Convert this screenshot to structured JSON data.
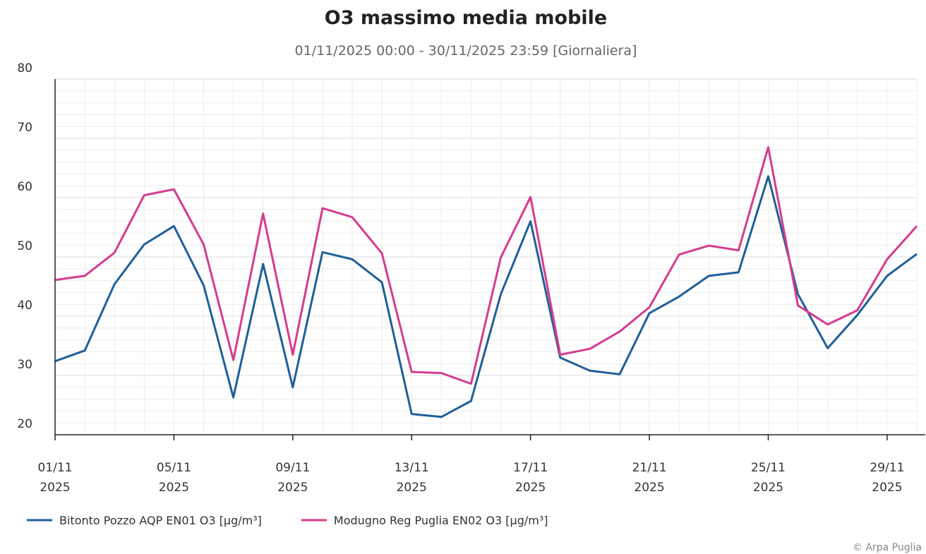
{
  "chart_data": {
    "type": "line",
    "title": "O3 massimo media mobile",
    "subtitle": "01/11/2025 00:00 - 30/11/2025 23:59 [Giornaliera]",
    "credit": "© Arpa Puglia",
    "x": [
      "01/11/2025",
      "02/11/2025",
      "03/11/2025",
      "04/11/2025",
      "05/11/2025",
      "06/11/2025",
      "07/11/2025",
      "08/11/2025",
      "09/11/2025",
      "10/11/2025",
      "11/11/2025",
      "12/11/2025",
      "13/11/2025",
      "14/11/2025",
      "15/11/2025",
      "16/11/2025",
      "17/11/2025",
      "18/11/2025",
      "19/11/2025",
      "20/11/2025",
      "21/11/2025",
      "22/11/2025",
      "23/11/2025",
      "24/11/2025",
      "25/11/2025",
      "26/11/2025",
      "27/11/2025",
      "28/11/2025",
      "29/11/2025",
      "30/11/2025"
    ],
    "xticks": [
      {
        "value": "01/11/2025",
        "label": [
          "01/11",
          "2025"
        ]
      },
      {
        "value": "05/11/2025",
        "label": [
          "05/11",
          "2025"
        ]
      },
      {
        "value": "09/11/2025",
        "label": [
          "09/11",
          "2025"
        ]
      },
      {
        "value": "13/11/2025",
        "label": [
          "13/11",
          "2025"
        ]
      },
      {
        "value": "17/11/2025",
        "label": [
          "17/11",
          "2025"
        ]
      },
      {
        "value": "21/11/2025",
        "label": [
          "21/11",
          "2025"
        ]
      },
      {
        "value": "25/11/2025",
        "label": [
          "25/11",
          "2025"
        ]
      },
      {
        "value": "29/11/2025",
        "label": [
          "29/11",
          "2025"
        ]
      }
    ],
    "ylim": [
      20,
      80
    ],
    "yticks": [
      20,
      30,
      40,
      50,
      60,
      70,
      80
    ],
    "grid": true,
    "legend": "bottom",
    "series": [
      {
        "name": "Bitonto Pozzo AQP EN01 O3 [µg/m³]",
        "color": "#1f5f99",
        "values": [
          32.4,
          34.2,
          45.4,
          52.1,
          55.2,
          45.2,
          26.3,
          48.8,
          28.0,
          50.8,
          49.6,
          45.7,
          23.5,
          23.0,
          25.7,
          43.7,
          56.0,
          33.0,
          30.8,
          30.2,
          40.5,
          43.3,
          46.8,
          47.4,
          63.6,
          43.7,
          34.6,
          40.2,
          46.8,
          50.5
        ]
      },
      {
        "name": "Modugno Reg Puglia EN02 O3 [µg/m³]",
        "color": "#d63b8f",
        "values": [
          46.1,
          46.8,
          50.7,
          60.4,
          61.4,
          52.1,
          32.6,
          57.3,
          33.5,
          58.2,
          56.7,
          50.6,
          30.6,
          30.4,
          28.6,
          49.9,
          60.1,
          33.5,
          34.5,
          37.4,
          41.5,
          50.4,
          51.9,
          51.1,
          68.5,
          41.8,
          38.6,
          41.0,
          49.6,
          55.2
        ]
      }
    ]
  }
}
